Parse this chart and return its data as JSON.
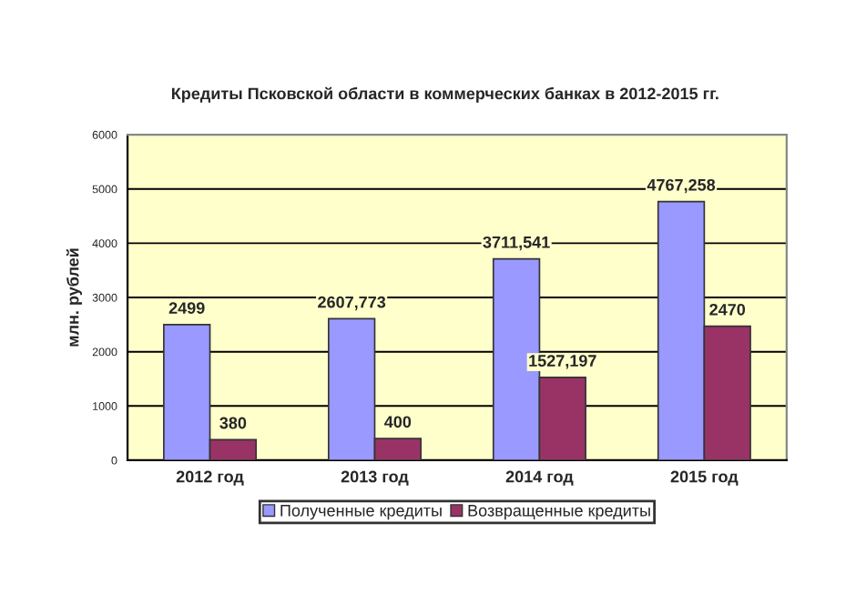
{
  "chart_data": {
    "type": "bar",
    "title": "Кредиты Псковской области в коммерческих банках в 2012-2015 гг.",
    "ylabel": "млн. рублей",
    "categories": [
      "2012 год",
      "2013 год",
      "2014 год",
      "2015 год"
    ],
    "series": [
      {
        "name": "Полученные кредиты",
        "color": "#9999ff",
        "values": [
          2499,
          2607.773,
          3711.541,
          4767.258
        ],
        "value_labels": [
          "2499",
          "2607,773",
          "3711,541",
          "4767,258"
        ]
      },
      {
        "name": "Возвращенные кредиты",
        "color": "#993366",
        "values": [
          380,
          400,
          1527.197,
          2470
        ],
        "value_labels": [
          "380",
          "400",
          "1527,197",
          "2470"
        ]
      }
    ],
    "ylim": [
      0,
      6000
    ],
    "yticks": [
      0,
      1000,
      2000,
      3000,
      4000,
      5000,
      6000
    ],
    "grid": "y",
    "legend": "bottom"
  }
}
